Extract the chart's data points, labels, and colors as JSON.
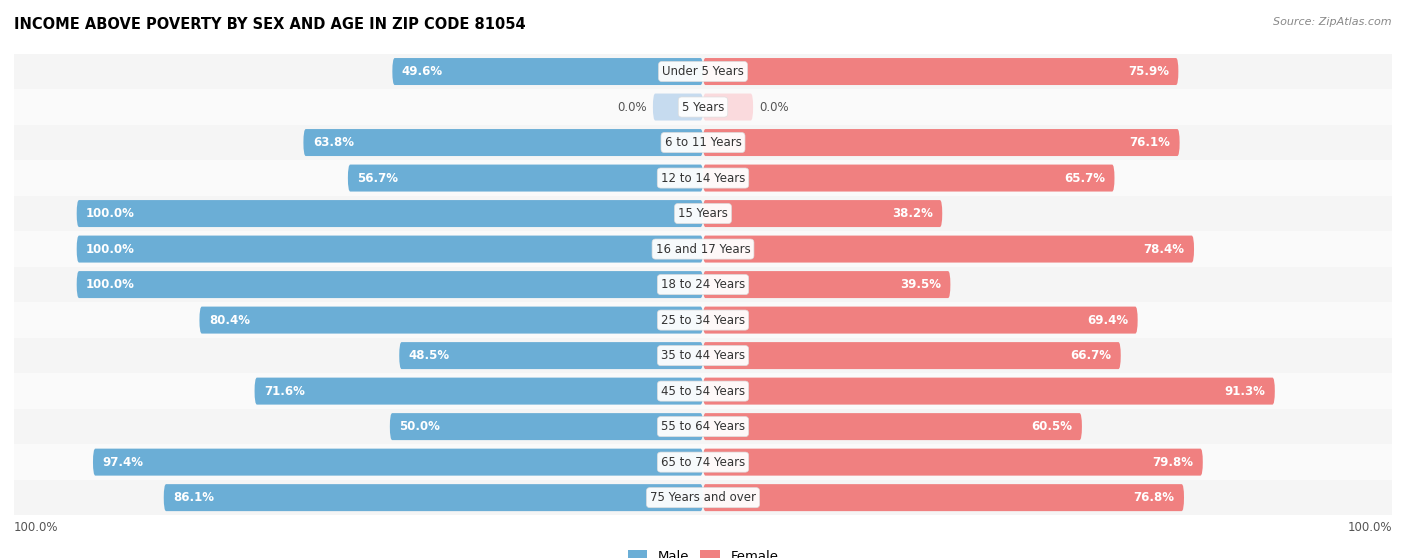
{
  "title": "INCOME ABOVE POVERTY BY SEX AND AGE IN ZIP CODE 81054",
  "source": "Source: ZipAtlas.com",
  "categories": [
    "Under 5 Years",
    "5 Years",
    "6 to 11 Years",
    "12 to 14 Years",
    "15 Years",
    "16 and 17 Years",
    "18 to 24 Years",
    "25 to 34 Years",
    "35 to 44 Years",
    "45 to 54 Years",
    "55 to 64 Years",
    "65 to 74 Years",
    "75 Years and over"
  ],
  "male_values": [
    49.6,
    0.0,
    63.8,
    56.7,
    100.0,
    100.0,
    100.0,
    80.4,
    48.5,
    71.6,
    50.0,
    97.4,
    86.1
  ],
  "female_values": [
    75.9,
    0.0,
    76.1,
    65.7,
    38.2,
    78.4,
    39.5,
    69.4,
    66.7,
    91.3,
    60.5,
    79.8,
    76.8
  ],
  "male_color": "#6BAED6",
  "female_color": "#F08080",
  "male_color_light": "#C6DBEF",
  "female_color_light": "#FADADD",
  "row_bg_odd": "#F5F5F5",
  "row_bg_even": "#FAFAFA",
  "bar_height": 0.38,
  "max_value": 100.0,
  "label_fontsize": 8.5,
  "cat_fontsize": 8.5
}
